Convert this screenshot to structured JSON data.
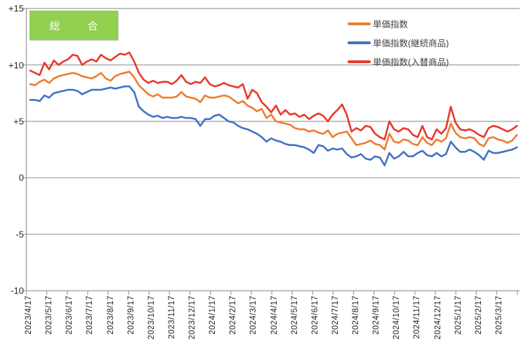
{
  "badge": {
    "label": "総　合",
    "bg": "#92D050",
    "text_color": "#ffffff"
  },
  "chart_data": {
    "type": "line",
    "title": "総合 単価指数",
    "grid": "horizontal",
    "legend_position": "top-right",
    "ylim": [
      -10,
      15
    ],
    "y_tick_values": [
      15,
      10,
      5,
      0,
      -5,
      -10
    ],
    "y_tick_labels": [
      "+15",
      "+10",
      "+5",
      "0",
      "-5",
      "-10"
    ],
    "x_unit": "weekly points, monthly tick labels",
    "x_tick_labels": [
      "2023/4/17",
      "2023/5/17",
      "2023/6/17",
      "2023/7/17",
      "2023/8/17",
      "2023/9/17",
      "2023/10/17",
      "2023/11/17",
      "2023/12/17",
      "2024/1/17",
      "2024/2/17",
      "2024/3/17",
      "2024/4/17",
      "2024/5/17",
      "2024/6/17",
      "2024/7/17",
      "2024/8/17",
      "2024/9/17",
      "2024/10/17",
      "2024/11/17",
      "2024/12/17",
      "2025/1/17",
      "2025/2/17",
      "2025/3/17"
    ],
    "axis_color": "#9e9e9e",
    "series": [
      {
        "name": "単価指数",
        "color": "#ED7D31",
        "values": [
          8.3,
          8.2,
          8.5,
          8.7,
          8.4,
          8.8,
          9.0,
          9.1,
          9.2,
          9.3,
          9.2,
          9.0,
          8.9,
          8.8,
          9.0,
          9.3,
          8.8,
          8.6,
          9.0,
          9.2,
          9.3,
          9.4,
          8.9,
          8.2,
          7.8,
          7.4,
          7.2,
          7.4,
          7.1,
          7.1,
          7.1,
          7.2,
          7.6,
          7.2,
          7.1,
          7.0,
          6.7,
          7.3,
          7.1,
          7.1,
          7.2,
          7.3,
          7.2,
          6.9,
          6.6,
          6.8,
          6.4,
          6.2,
          5.9,
          6.1,
          5.3,
          5.6,
          5.0,
          4.9,
          4.8,
          4.7,
          4.4,
          4.3,
          4.3,
          4.1,
          4.2,
          4.0,
          3.9,
          4.2,
          3.6,
          3.9,
          4.0,
          4.1,
          3.5,
          2.9,
          3.0,
          3.1,
          3.3,
          3.0,
          2.9,
          2.5,
          3.9,
          3.2,
          3.1,
          3.4,
          3.3,
          3.0,
          2.9,
          3.6,
          3.1,
          2.9,
          3.4,
          3.2,
          3.5,
          4.8,
          4.0,
          3.6,
          3.5,
          3.6,
          3.5,
          3.0,
          2.8,
          3.5,
          3.6,
          3.4,
          3.3,
          3.1,
          3.3,
          3.8
        ]
      },
      {
        "name": "単価指数(継続商品)",
        "color": "#4472C4",
        "values": [
          6.9,
          6.9,
          6.8,
          7.3,
          7.1,
          7.5,
          7.6,
          7.7,
          7.8,
          7.8,
          7.7,
          7.4,
          7.6,
          7.8,
          7.8,
          7.8,
          7.9,
          8.0,
          7.9,
          8.0,
          8.1,
          8.1,
          7.6,
          6.3,
          5.9,
          5.6,
          5.4,
          5.5,
          5.3,
          5.4,
          5.3,
          5.3,
          5.4,
          5.3,
          5.3,
          5.2,
          4.6,
          5.2,
          5.2,
          5.5,
          5.6,
          5.3,
          5.0,
          4.9,
          4.6,
          4.4,
          4.3,
          4.1,
          3.9,
          3.6,
          3.2,
          3.5,
          3.3,
          3.2,
          3.0,
          2.9,
          2.9,
          2.8,
          2.7,
          2.5,
          2.2,
          2.9,
          2.8,
          2.4,
          2.6,
          2.5,
          2.6,
          2.1,
          1.8,
          1.9,
          2.1,
          1.7,
          1.6,
          1.9,
          1.8,
          1.1,
          2.2,
          1.7,
          1.9,
          2.3,
          1.9,
          1.9,
          2.2,
          2.4,
          2.0,
          1.9,
          2.2,
          1.9,
          2.1,
          3.2,
          2.7,
          2.3,
          2.3,
          2.5,
          2.3,
          2.0,
          1.6,
          2.4,
          2.2,
          2.2,
          2.3,
          2.4,
          2.5,
          2.7
        ]
      },
      {
        "name": "単価指数(入替商品)",
        "color": "#E8392D",
        "values": [
          9.5,
          9.3,
          9.1,
          10.2,
          9.6,
          10.4,
          10.0,
          10.3,
          10.5,
          10.9,
          10.8,
          10.0,
          10.3,
          10.5,
          10.3,
          10.9,
          10.6,
          10.4,
          10.7,
          11.0,
          10.9,
          11.1,
          10.3,
          9.3,
          8.7,
          8.4,
          8.6,
          8.4,
          8.5,
          8.5,
          8.3,
          8.6,
          9.1,
          8.5,
          8.3,
          8.5,
          8.4,
          8.9,
          8.3,
          8.1,
          8.2,
          8.4,
          8.2,
          8.1,
          8.0,
          8.3,
          7.0,
          7.8,
          7.5,
          6.7,
          6.3,
          5.8,
          6.4,
          5.6,
          6.0,
          5.6,
          5.7,
          5.4,
          5.6,
          5.2,
          5.5,
          5.7,
          5.5,
          5.0,
          5.6,
          6.0,
          6.5,
          5.6,
          4.1,
          4.4,
          4.2,
          4.6,
          4.5,
          3.9,
          3.6,
          3.4,
          5.0,
          4.3,
          4.1,
          4.4,
          4.3,
          3.8,
          3.6,
          4.6,
          3.6,
          3.4,
          4.3,
          3.9,
          4.4,
          6.3,
          4.9,
          4.3,
          4.2,
          4.3,
          4.1,
          3.8,
          3.6,
          4.4,
          4.6,
          4.5,
          4.3,
          4.1,
          4.3,
          4.6
        ]
      }
    ]
  }
}
